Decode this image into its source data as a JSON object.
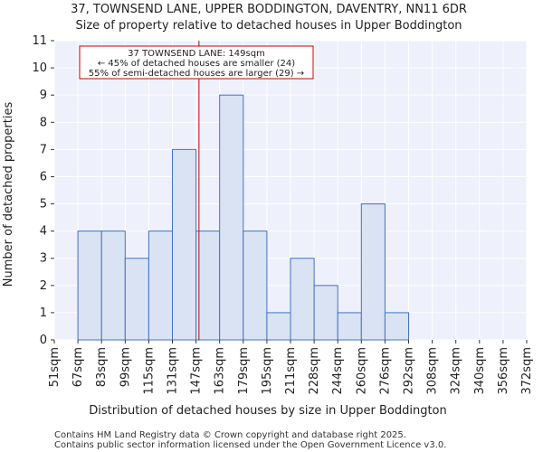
{
  "header": {
    "title_line1": "37, TOWNSEND LANE, UPPER BODDINGTON, DAVENTRY, NN11 6DR",
    "title_line2": "Size of property relative to detached houses in Upper Boddington"
  },
  "chart_data": {
    "type": "bar",
    "title": "Size of property relative to detached houses in Upper Boddington",
    "xlabel": "Distribution of detached houses by size in Upper Boddington",
    "ylabel": "Number of detached properties",
    "ylim": [
      0,
      11
    ],
    "yticks": [
      0,
      1,
      2,
      3,
      4,
      5,
      6,
      7,
      8,
      9,
      10,
      11
    ],
    "bin_edges": [
      51,
      67,
      83,
      99,
      115,
      131,
      147,
      163,
      179,
      195,
      211,
      228,
      244,
      260,
      276,
      292,
      308,
      324,
      340,
      356,
      372
    ],
    "xtick_labels": [
      "51sqm",
      "67sqm",
      "83sqm",
      "99sqm",
      "115sqm",
      "131sqm",
      "147sqm",
      "163sqm",
      "179sqm",
      "195sqm",
      "211sqm",
      "228sqm",
      "244sqm",
      "260sqm",
      "276sqm",
      "292sqm",
      "308sqm",
      "324sqm",
      "340sqm",
      "356sqm",
      "372sqm"
    ],
    "values": [
      0,
      4,
      4,
      3,
      4,
      7,
      4,
      9,
      4,
      1,
      3,
      2,
      1,
      5,
      1,
      0,
      0,
      0,
      0,
      0
    ],
    "grid": true,
    "property_marker": {
      "value": 149,
      "unit": "sqm",
      "color": "#cc0000"
    },
    "annotation": {
      "line1": "37 TOWNSEND LANE: 149sqm",
      "line2": "← 45% of detached houses are smaller (24)",
      "line3": "55% of semi-detached houses are larger (29) →"
    },
    "colors": {
      "bar_fill": "#dae3f3",
      "bar_stroke": "#4472c4",
      "plot_bg": "#eef0fb",
      "grid": "#ffffff"
    }
  },
  "footer": {
    "line1": "Contains HM Land Registry data © Crown copyright and database right 2025.",
    "line2": "Contains public sector information licensed under the Open Government Licence v3.0."
  }
}
